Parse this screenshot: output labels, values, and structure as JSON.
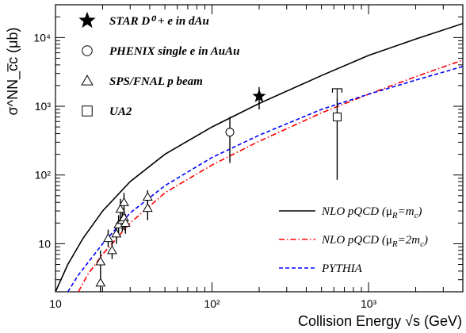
{
  "chart_data": {
    "type": "scatter",
    "xlabel": "Collision Energy √s (GeV)",
    "ylabel": "σ^NN_c̅c (μb)",
    "xscale": "log",
    "yscale": "log",
    "xlim": [
      10,
      4000
    ],
    "ylim": [
      2,
      30000
    ],
    "x_ticks": [
      {
        "value": 10,
        "label": "10"
      },
      {
        "value": 100,
        "label": "10²"
      },
      {
        "value": 1000,
        "label": "10³"
      }
    ],
    "y_ticks": [
      {
        "value": 10,
        "label": "10"
      },
      {
        "value": 100,
        "label": "10²"
      },
      {
        "value": 1000,
        "label": "10³"
      },
      {
        "value": 10000,
        "label": "10⁴"
      }
    ],
    "grid": false,
    "legend_position": "top-left",
    "data_series": [
      {
        "name": "STAR D⁰ + e in dAu",
        "marker": "star",
        "points": [
          {
            "x": 200,
            "y": 1400,
            "ylo": 900,
            "yhi": 1900
          }
        ]
      },
      {
        "name": "PHENIX single e in AuAu",
        "marker": "circle",
        "points": [
          {
            "x": 130,
            "y": 420,
            "ylo": 150,
            "yhi": 700
          }
        ]
      },
      {
        "name": "SPS/FNAL p beam",
        "marker": "triangle",
        "points": [
          {
            "x": 19.4,
            "y": 2.7,
            "ylo": 2.0,
            "yhi": 4.0
          },
          {
            "x": 19.4,
            "y": 5.5,
            "ylo": 4.0,
            "yhi": 8.0
          },
          {
            "x": 21.7,
            "y": 12,
            "ylo": 9,
            "yhi": 16
          },
          {
            "x": 23,
            "y": 8,
            "ylo": 6,
            "yhi": 11
          },
          {
            "x": 24.5,
            "y": 14,
            "ylo": 10,
            "yhi": 20
          },
          {
            "x": 25.3,
            "y": 19,
            "ylo": 13,
            "yhi": 26
          },
          {
            "x": 26,
            "y": 32,
            "ylo": 22,
            "yhi": 45
          },
          {
            "x": 26.7,
            "y": 22,
            "ylo": 15,
            "yhi": 30
          },
          {
            "x": 27.4,
            "y": 40,
            "ylo": 26,
            "yhi": 55
          },
          {
            "x": 27.4,
            "y": 24,
            "ylo": 16,
            "yhi": 33
          },
          {
            "x": 28,
            "y": 20,
            "ylo": 14,
            "yhi": 27
          },
          {
            "x": 38.8,
            "y": 48,
            "ylo": 35,
            "yhi": 60
          },
          {
            "x": 38.8,
            "y": 33,
            "ylo": 22,
            "yhi": 45
          }
        ]
      },
      {
        "name": "UA2",
        "marker": "square",
        "points": [
          {
            "x": 630,
            "y": 700,
            "ylo": 85,
            "yhi": 1300,
            "syshi": 1800
          }
        ]
      }
    ],
    "model_curves": [
      {
        "name": "NLO pQCD (μ_R=m_c)",
        "style": "solid",
        "color": "#000000",
        "points": [
          [
            10,
            2
          ],
          [
            12,
            5
          ],
          [
            15,
            12
          ],
          [
            20,
            30
          ],
          [
            30,
            80
          ],
          [
            50,
            200
          ],
          [
            100,
            500
          ],
          [
            200,
            1100
          ],
          [
            500,
            2800
          ],
          [
            1000,
            5500
          ],
          [
            2000,
            9500
          ],
          [
            4000,
            16000
          ]
        ]
      },
      {
        "name": "NLO pQCD (μ_R=2m_c)",
        "style": "dash-dot",
        "color": "#ff0000",
        "points": [
          [
            14,
            2
          ],
          [
            16,
            3.5
          ],
          [
            20,
            7
          ],
          [
            30,
            20
          ],
          [
            50,
            55
          ],
          [
            100,
            140
          ],
          [
            200,
            310
          ],
          [
            500,
            800
          ],
          [
            1000,
            1500
          ],
          [
            2000,
            2700
          ],
          [
            4000,
            4700
          ]
        ]
      },
      {
        "name": "PYTHIA",
        "style": "dashed",
        "color": "#0000ff",
        "points": [
          [
            12,
            2
          ],
          [
            14,
            3.5
          ],
          [
            20,
            10
          ],
          [
            30,
            28
          ],
          [
            50,
            70
          ],
          [
            100,
            180
          ],
          [
            200,
            380
          ],
          [
            500,
            900
          ],
          [
            1000,
            1500
          ],
          [
            2000,
            2400
          ],
          [
            4000,
            3800
          ]
        ]
      }
    ],
    "legend_entries": [
      {
        "marker": "star",
        "label": "STAR D⁰ + e in dAu"
      },
      {
        "marker": "circle",
        "label": "PHENIX single e in AuAu"
      },
      {
        "marker": "triangle",
        "label": "SPS/FNAL p beam"
      },
      {
        "marker": "square",
        "label": "UA2"
      }
    ],
    "model_legend_entries": [
      {
        "style": "solid",
        "color": "#000000",
        "text": "NLO pQCD (",
        "mu": "μ",
        "mu_sub": "R",
        "eq": "=m",
        "eq_sub": "c",
        "close": ")"
      },
      {
        "style": "dash-dot",
        "color": "#ff0000",
        "text": "NLO pQCD (",
        "mu": "μ",
        "mu_sub": "R",
        "eq": "=2m",
        "eq_sub": "c",
        "close": ")"
      },
      {
        "style": "dashed",
        "color": "#0000ff",
        "text": "PYTHIA",
        "mu": "",
        "mu_sub": "",
        "eq": "",
        "eq_sub": "",
        "close": ""
      }
    ]
  }
}
